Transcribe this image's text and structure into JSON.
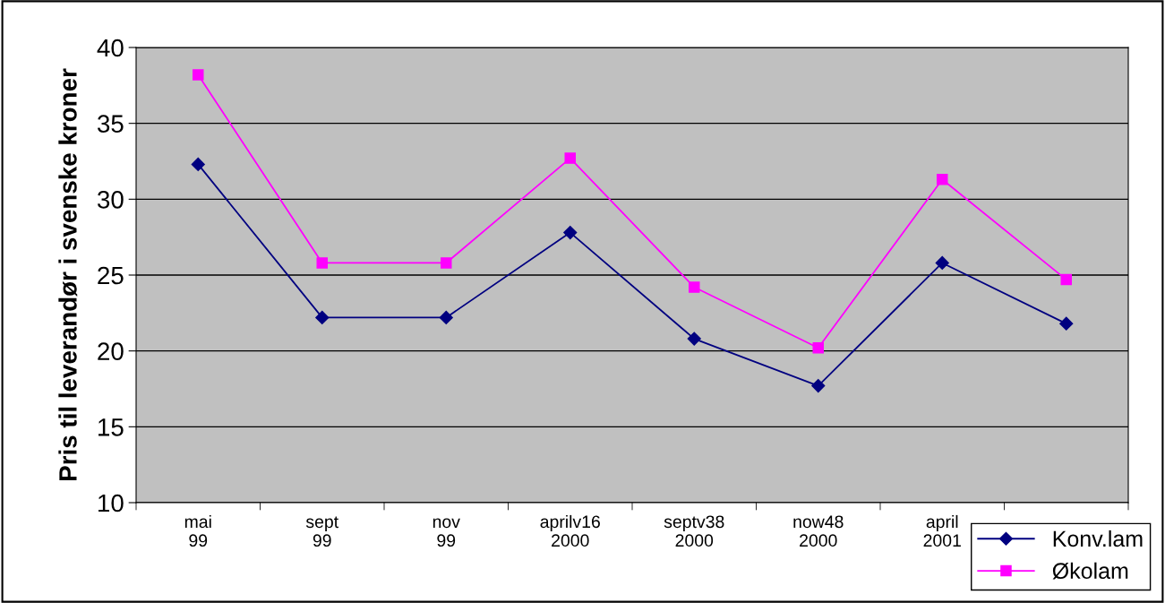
{
  "chart_data": {
    "type": "line",
    "ylabel": "Pris til leverandør i svenske kroner",
    "categories": [
      "mai\n99",
      "sept\n99",
      "nov\n99",
      "aprilv16\n2000",
      "septv38\n2000",
      "now48\n2000",
      "april\n2001",
      null
    ],
    "series": [
      {
        "name": "Konv.lam",
        "color": "#000080",
        "marker": "diamond",
        "values": [
          32.3,
          22.2,
          22.2,
          27.8,
          20.8,
          17.7,
          25.8,
          21.8
        ]
      },
      {
        "name": "Økolam",
        "color": "#ff00ff",
        "marker": "square",
        "values": [
          38.2,
          25.8,
          25.8,
          32.7,
          24.2,
          20.2,
          31.3,
          24.7
        ]
      }
    ],
    "ylim": [
      10,
      40
    ],
    "yticks": [
      10,
      15,
      20,
      25,
      30,
      35,
      40
    ],
    "grid": "y",
    "legend": "bottom right",
    "line_style": "solid"
  }
}
